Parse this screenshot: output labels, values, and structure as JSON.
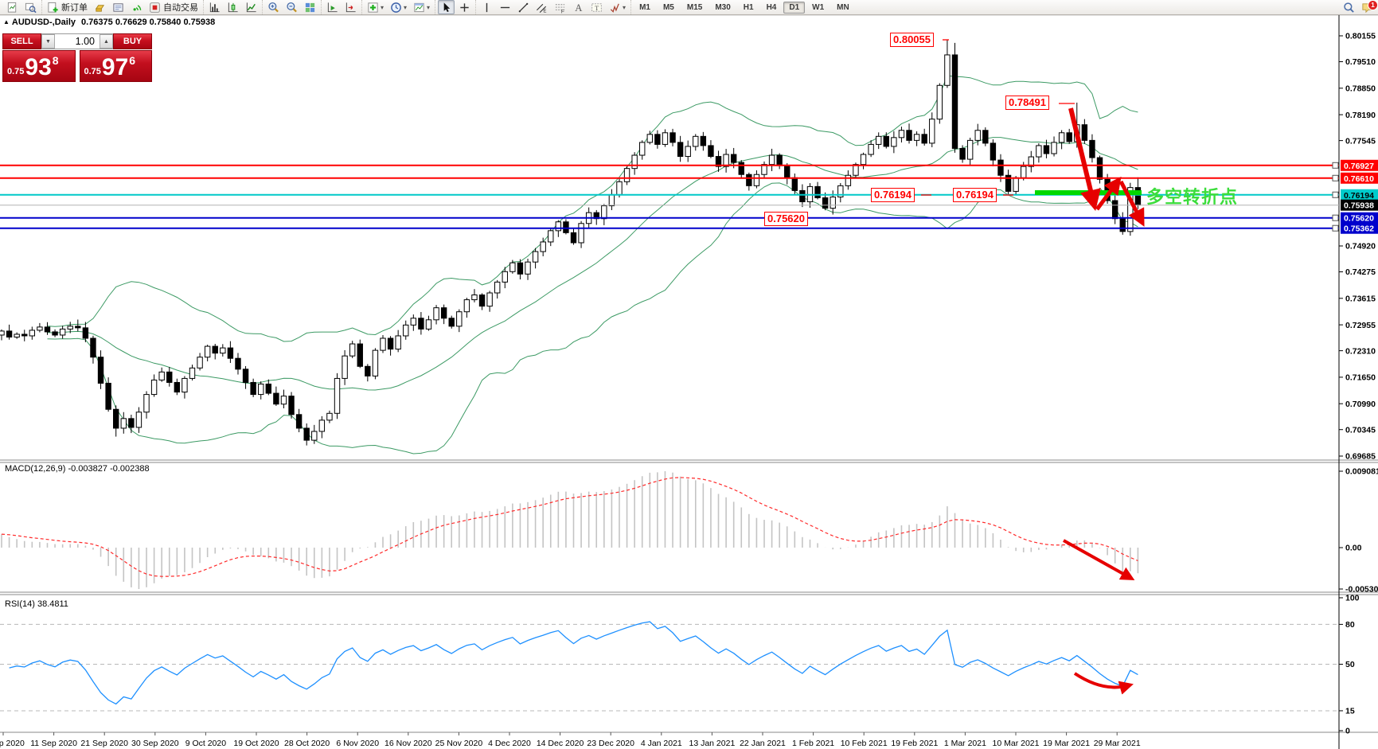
{
  "toolbar": {
    "groups": [
      {
        "items": [
          {
            "icon": "new-chart"
          },
          {
            "icon": "profiles"
          }
        ]
      },
      {
        "items": [
          {
            "icon": "new-order",
            "label": "新订单"
          },
          {
            "icon": "gold"
          },
          {
            "icon": "news"
          },
          {
            "icon": "signal"
          },
          {
            "icon": "autotrade",
            "label": "自动交易"
          }
        ]
      },
      {
        "items": [
          {
            "icon": "bars-chart"
          },
          {
            "icon": "candle-chart"
          },
          {
            "icon": "line-chart"
          }
        ]
      },
      {
        "items": [
          {
            "icon": "zoom-in"
          },
          {
            "icon": "zoom-out"
          },
          {
            "icon": "tile-windows"
          }
        ]
      },
      {
        "items": [
          {
            "icon": "auto-scroll"
          },
          {
            "icon": "chart-shift"
          }
        ]
      },
      {
        "items": [
          {
            "icon": "indicators",
            "dropdown": true
          },
          {
            "icon": "periods",
            "dropdown": true
          },
          {
            "icon": "templates",
            "dropdown": true
          }
        ]
      },
      {
        "items": [
          {
            "icon": "cursor",
            "pressed": true
          },
          {
            "icon": "crosshair"
          }
        ]
      },
      {
        "items": [
          {
            "icon": "vline"
          },
          {
            "icon": "hline"
          },
          {
            "icon": "trendline"
          },
          {
            "icon": "channel"
          },
          {
            "icon": "fibonacci"
          },
          {
            "icon": "text"
          },
          {
            "icon": "text-label"
          },
          {
            "icon": "shapes",
            "dropdown": true
          }
        ]
      }
    ],
    "timeframes": [
      "M1",
      "M5",
      "M15",
      "M30",
      "H1",
      "H4",
      "D1",
      "W1",
      "MN"
    ],
    "active_timeframe": "D1",
    "right_icons": [
      {
        "icon": "search"
      },
      {
        "icon": "chat",
        "badge": "1"
      }
    ]
  },
  "chart_header": {
    "symbol_period": "AUDUSD-,Daily",
    "ohlc": "0.76375 0.76629 0.75840 0.75938"
  },
  "trade_panel": {
    "sell_label": "SELL",
    "buy_label": "BUY",
    "volume": "1.00",
    "sell_small": "0.75",
    "sell_big": "93",
    "sell_sup": "8",
    "buy_small": "0.75",
    "buy_big": "97",
    "buy_sup": "6"
  },
  "main_axis": {
    "plain_ticks": [
      "0.80155",
      "0.79510",
      "0.78850",
      "0.78190",
      "0.77545",
      "0.74920",
      "0.74275",
      "0.73615",
      "0.72955",
      "0.72310",
      "0.71650",
      "0.70990",
      "0.70345",
      "0.69685"
    ],
    "line_labels": [
      {
        "text": "0.76927",
        "bg": "#ff0000",
        "fg": "#ffffff",
        "handle": true
      },
      {
        "text": "0.76610",
        "bg": "#ff0000",
        "fg": "#ffffff",
        "handle": true
      },
      {
        "text": "0.76194",
        "bg": "#00cccc",
        "fg": "#000000",
        "handle": true
      },
      {
        "text": "0.75938",
        "bg": "#000000",
        "fg": "#ffffff",
        "handle": false
      },
      {
        "text": "0.75620",
        "bg": "#0000cc",
        "fg": "#ffffff",
        "handle": true
      },
      {
        "text": "0.75362",
        "bg": "#0000cc",
        "fg": "#ffffff",
        "handle": true
      }
    ]
  },
  "macd": {
    "label": "MACD(12,26,9) -0.003827 -0.002388",
    "axis_labels": [
      "0.009081",
      "0.00",
      "-0.005306"
    ]
  },
  "rsi": {
    "label": "RSI(14) 38.4811",
    "axis_labels": [
      "100",
      "80",
      "50",
      "15",
      "0"
    ],
    "levels": [
      80,
      50,
      15
    ]
  },
  "dates": [
    "2 Sep 2020",
    "11 Sep 2020",
    "21 Sep 2020",
    "30 Sep 2020",
    "9 Oct 2020",
    "19 Oct 2020",
    "28 Oct 2020",
    "6 Nov 2020",
    "16 Nov 2020",
    "25 Nov 2020",
    "4 Dec 2020",
    "14 Dec 2020",
    "23 Dec 2020",
    "4 Jan 2021",
    "13 Jan 2021",
    "22 Jan 2021",
    "1 Feb 2021",
    "10 Feb 2021",
    "19 Feb 2021",
    "1 Mar 2021",
    "10 Mar 2021",
    "19 Mar 2021",
    "29 Mar 2021"
  ],
  "annotations": {
    "price_tags": [
      {
        "text": "0.80055"
      },
      {
        "text": "0.78491"
      },
      {
        "text": "0.76194"
      },
      {
        "text": "0.76194"
      },
      {
        "text": "0.75620"
      }
    ],
    "turning_point_text": "多空转折点",
    "turning_point_color": "#3bdd3b",
    "support_line_color": "#00d800",
    "arrow_color": "#e60000"
  },
  "chart_data": {
    "type": "candlestick",
    "symbol": "AUDUSD-",
    "period": "Daily",
    "last_ohlc": {
      "open": 0.76375,
      "high": 0.76629,
      "low": 0.7584,
      "close": 0.75938
    },
    "bid": 0.75938,
    "ask": 0.75976,
    "y_axis_min": 0.69685,
    "y_axis_max": 0.80155,
    "closes": [
      0.728,
      0.7265,
      0.7272,
      0.7268,
      0.7282,
      0.729,
      0.7278,
      0.727,
      0.7285,
      0.7292,
      0.7288,
      0.7262,
      0.7215,
      0.715,
      0.7085,
      0.7038,
      0.7062,
      0.704,
      0.7078,
      0.7122,
      0.7158,
      0.7178,
      0.7152,
      0.7128,
      0.7162,
      0.7188,
      0.7215,
      0.7242,
      0.7225,
      0.7238,
      0.7212,
      0.7185,
      0.7152,
      0.7122,
      0.7148,
      0.7125,
      0.7098,
      0.7118,
      0.7072,
      0.7038,
      0.7008,
      0.703,
      0.7058,
      0.7075,
      0.7162,
      0.7218,
      0.7248,
      0.7192,
      0.7168,
      0.7232,
      0.7262,
      0.7235,
      0.7268,
      0.7295,
      0.7312,
      0.7285,
      0.7308,
      0.7338,
      0.7312,
      0.7292,
      0.7328,
      0.7358,
      0.737,
      0.7342,
      0.7375,
      0.7402,
      0.7428,
      0.745,
      0.7422,
      0.7452,
      0.7478,
      0.7502,
      0.753,
      0.7552,
      0.7525,
      0.75,
      0.7548,
      0.7575,
      0.756,
      0.7592,
      0.762,
      0.7652,
      0.7685,
      0.7718,
      0.775,
      0.777,
      0.7745,
      0.7774,
      0.775,
      0.7715,
      0.774,
      0.7765,
      0.7742,
      0.7715,
      0.769,
      0.772,
      0.77,
      0.767,
      0.7642,
      0.767,
      0.7695,
      0.7718,
      0.7692,
      0.7662,
      0.763,
      0.7602,
      0.764,
      0.7612,
      0.7586,
      0.7614,
      0.7642,
      0.7668,
      0.7695,
      0.772,
      0.7745,
      0.7765,
      0.774,
      0.7762,
      0.778,
      0.7755,
      0.777,
      0.7748,
      0.7808,
      0.7892,
      0.7968,
      0.7735,
      0.7708,
      0.7755,
      0.778,
      0.7748,
      0.7706,
      0.7668,
      0.7628,
      0.7662,
      0.769,
      0.7714,
      0.7742,
      0.7722,
      0.775,
      0.7774,
      0.7752,
      0.7794,
      0.7755,
      0.7712,
      0.7658,
      0.7605,
      0.756,
      0.7528,
      0.76375,
      0.75938
    ],
    "special_highs": {
      "124": 0.80055,
      "125": 0.7998,
      "141": 0.78491,
      "149": 0.76629
    },
    "special_lows": {
      "15": 0.7017,
      "40": 0.6995,
      "147": 0.752,
      "149": 0.7584
    },
    "hlines": [
      {
        "price": 0.76927,
        "color": "#ff0000",
        "width": 2
      },
      {
        "price": 0.7661,
        "color": "#ff0000",
        "width": 2
      },
      {
        "price": 0.76194,
        "color": "#00c8c8",
        "width": 2
      },
      {
        "price": 0.75938,
        "color": "#b4b4b4",
        "width": 1
      },
      {
        "price": 0.7562,
        "color": "#0000cc",
        "width": 2
      },
      {
        "price": 0.75362,
        "color": "#0000cc",
        "width": 2
      }
    ],
    "bollinger": {
      "period": 20,
      "deviation": 2,
      "color": "#3c9a64"
    },
    "macd": {
      "fast": 12,
      "slow": 26,
      "signal_period": 9,
      "value": -0.003827,
      "signal_value": -0.002388,
      "range_top": 0.009081,
      "range_bottom": -0.005306,
      "histogram_color": "#c4c4c4",
      "signal_color": "#ff2a2a"
    },
    "rsi": {
      "period": 14,
      "value": 38.4811,
      "color": "#1e90ff",
      "range": [
        0,
        100
      ]
    }
  }
}
